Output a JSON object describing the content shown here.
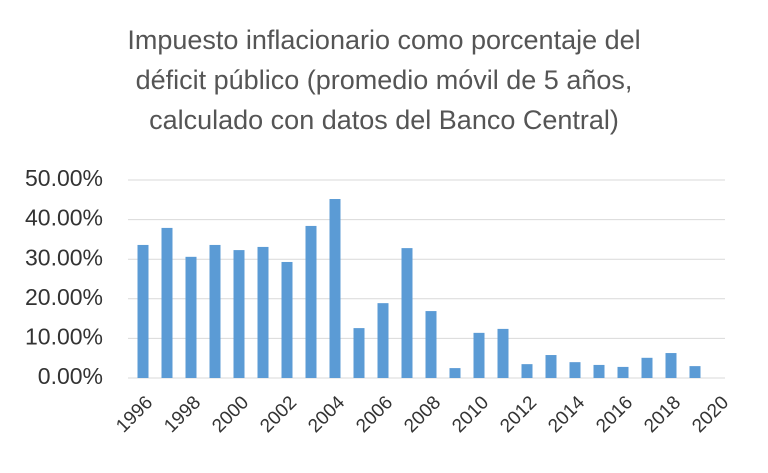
{
  "chart_data": {
    "type": "bar",
    "title": [
      "Impuesto inflacionario como porcentaje del",
      "déficit público (promedio móvil de 5 años,",
      "calculado con datos del Banco Central)"
    ],
    "categories": [
      "1996",
      null,
      "1998",
      null,
      "2000",
      null,
      "2002",
      null,
      "2004",
      null,
      "2006",
      null,
      "2008",
      null,
      "2010",
      null,
      "2012",
      null,
      "2014",
      null,
      "2016",
      null,
      "2018",
      null,
      "2020"
    ],
    "values": [
      33.6,
      37.9,
      30.6,
      33.6,
      32.3,
      33.1,
      29.3,
      38.4,
      45.2,
      12.6,
      18.9,
      32.8,
      16.9,
      2.5,
      11.4,
      12.4,
      3.5,
      5.8,
      4.0,
      3.3,
      2.8,
      5.1,
      6.3,
      3.0,
      null
    ],
    "color": "#5b9bd5",
    "ylim": [
      0,
      50
    ],
    "yticks": [
      {
        "value": 0,
        "label": "0.00%"
      },
      {
        "value": 10,
        "label": "10.00%"
      },
      {
        "value": 20,
        "label": "20.00%"
      },
      {
        "value": 30,
        "label": "30.00%"
      },
      {
        "value": 40,
        "label": "40.00%"
      },
      {
        "value": 50,
        "label": "50.00%"
      }
    ],
    "grid": true
  }
}
